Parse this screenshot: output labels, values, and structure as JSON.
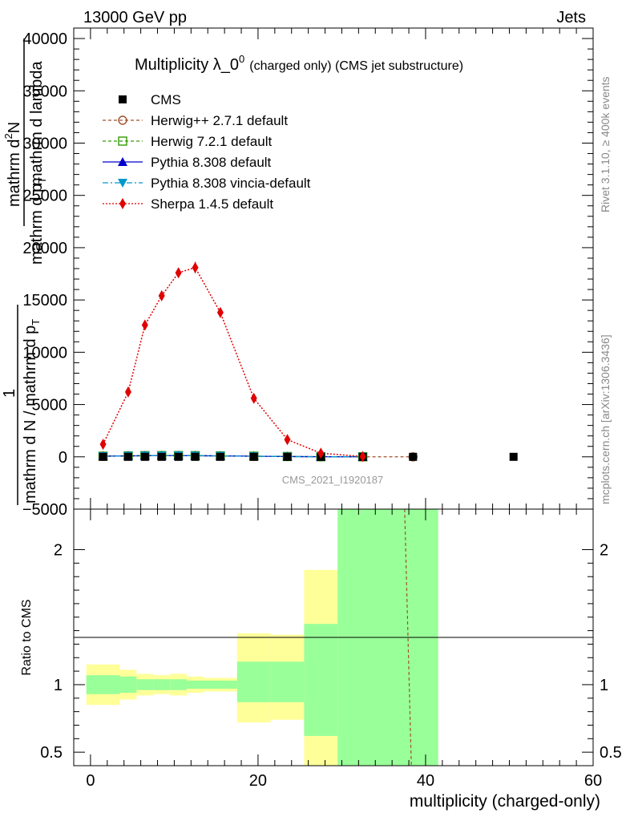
{
  "header": {
    "left": "13000 GeV pp",
    "right": "Jets"
  },
  "side_labels": {
    "rivet": "Rivet 3.1.10, ≥ 400k events",
    "mcplots": "mcplots.cern.ch [arXiv:1306.3436]"
  },
  "watermark": "CMS_2021_I1920187",
  "colors": {
    "cms": "#000000",
    "herwigpp": "#a0522d",
    "herwig7": "#339900",
    "pythia": "#0000cc",
    "vincia": "#0099cc",
    "sherpa": "#e00000",
    "band_inner": "#99ff99",
    "band_outer": "#ffff99"
  },
  "chart_data": [
    {
      "type": "scatter",
      "panel": "main",
      "title_main": "Multiplicity λ_0",
      "title_sup": "0",
      "title_sub": "(charged only) (CMS jet substructure)",
      "ylabel_top": "mathrm d",
      "ylabel_top_sup": "2",
      "ylabel_top_n": "N",
      "ylabel_frac1": "mathrm d p",
      "ylabel_frac1_sub": "T",
      "ylabel_frac2": "mathrm d lambda",
      "ylabel_one": "1",
      "ylabel_bottom": "mathrm d N / mathrm d p",
      "ylabel_bottom_sub": "T",
      "xlim": [
        -2,
        60
      ],
      "ylim": [
        -5000,
        41000
      ],
      "yticks": [
        -5000,
        0,
        5000,
        10000,
        15000,
        20000,
        25000,
        30000,
        35000,
        40000
      ],
      "ytick_labels": [
        "−5000",
        "0",
        "5000",
        "10000",
        "15000",
        "20000",
        "25000",
        "30000",
        "35000",
        "40000"
      ],
      "legend": [
        "CMS",
        "Herwig++ 2.7.1 default",
        "Herwig 7.2.1 default",
        "Pythia 8.308 default",
        "Pythia 8.308 vincia-default",
        "Sherpa 1.4.5 default"
      ],
      "series": [
        {
          "name": "CMS",
          "x": [
            1.5,
            4.5,
            6.5,
            8.5,
            10.5,
            12.5,
            15.5,
            19.5,
            23.5,
            27.5,
            32.5,
            38.5,
            50.5
          ],
          "y": [
            0,
            0,
            0,
            0,
            0,
            0,
            0,
            0,
            0,
            0,
            0,
            0,
            0
          ]
        },
        {
          "name": "Herwig++ 2.7.1 default",
          "x": [
            1.5,
            4.5,
            6.5,
            8.5,
            10.5,
            12.5,
            15.5,
            19.5,
            23.5,
            27.5,
            32.5,
            38.5
          ],
          "y": [
            60,
            90,
            110,
            120,
            120,
            110,
            90,
            60,
            30,
            10,
            2,
            0
          ]
        },
        {
          "name": "Herwig 7.2.1 default",
          "x": [
            1.5,
            4.5,
            6.5,
            8.5,
            10.5,
            12.5,
            15.5,
            19.5,
            23.5,
            27.5,
            32.5
          ],
          "y": [
            60,
            90,
            110,
            120,
            120,
            110,
            90,
            60,
            30,
            10,
            2
          ]
        },
        {
          "name": "Pythia 8.308 default",
          "x": [
            1.5,
            4.5,
            6.5,
            8.5,
            10.5,
            12.5,
            15.5,
            19.5,
            23.5,
            27.5,
            32.5
          ],
          "y": [
            60,
            90,
            110,
            120,
            120,
            110,
            90,
            60,
            30,
            10,
            2
          ]
        },
        {
          "name": "Pythia 8.308 vincia-default",
          "x": [
            1.5,
            4.5,
            6.5,
            8.5,
            10.5,
            12.5,
            15.5,
            19.5,
            23.5,
            27.5,
            32.5
          ],
          "y": [
            60,
            90,
            110,
            120,
            120,
            110,
            90,
            60,
            30,
            10,
            2
          ]
        },
        {
          "name": "Sherpa 1.4.5 default",
          "x": [
            1.5,
            4.5,
            6.5,
            8.5,
            10.5,
            12.5,
            15.5,
            19.5,
            23.5,
            27.5,
            32.5
          ],
          "y": [
            1200,
            6200,
            12600,
            15400,
            17600,
            18100,
            13800,
            5600,
            1650,
            350,
            30
          ],
          "yerr": [
            250,
            300,
            400,
            450,
            450,
            550,
            400,
            250,
            150,
            80,
            20
          ]
        }
      ]
    },
    {
      "type": "area",
      "panel": "ratio",
      "ylabel": "Ratio to CMS",
      "xlabel": "multiplicity (charged-only)",
      "xlim": [
        -2,
        60
      ],
      "ylim": [
        0.4,
        2.3
      ],
      "yticks": [
        0.5,
        1,
        2
      ],
      "ytick_labels": [
        "0.5",
        "1",
        "2"
      ],
      "xticks": [
        0,
        20,
        40,
        60
      ],
      "xtick_labels": [
        "0",
        "20",
        "40",
        "60"
      ],
      "bands": [
        {
          "x0": -0.5,
          "x1": 3.5,
          "inner_lo": 0.93,
          "inner_hi": 1.07,
          "outer_lo": 0.85,
          "outer_hi": 1.15
        },
        {
          "x0": 3.5,
          "x1": 5.5,
          "inner_lo": 0.94,
          "inner_hi": 1.06,
          "outer_lo": 0.89,
          "outer_hi": 1.11
        },
        {
          "x0": 5.5,
          "x1": 7.5,
          "inner_lo": 0.96,
          "inner_hi": 1.04,
          "outer_lo": 0.92,
          "outer_hi": 1.08
        },
        {
          "x0": 7.5,
          "x1": 9.5,
          "inner_lo": 0.96,
          "inner_hi": 1.04,
          "outer_lo": 0.93,
          "outer_hi": 1.07
        },
        {
          "x0": 9.5,
          "x1": 11.5,
          "inner_lo": 0.96,
          "inner_hi": 1.04,
          "outer_lo": 0.92,
          "outer_hi": 1.08
        },
        {
          "x0": 11.5,
          "x1": 13.5,
          "inner_lo": 0.97,
          "inner_hi": 1.03,
          "outer_lo": 0.94,
          "outer_hi": 1.06
        },
        {
          "x0": 13.5,
          "x1": 17.5,
          "inner_lo": 0.97,
          "inner_hi": 1.03,
          "outer_lo": 0.95,
          "outer_hi": 1.05
        },
        {
          "x0": 17.5,
          "x1": 21.5,
          "inner_lo": 0.87,
          "inner_hi": 1.17,
          "outer_lo": 0.72,
          "outer_hi": 1.38
        },
        {
          "x0": 21.5,
          "x1": 25.5,
          "inner_lo": 0.87,
          "inner_hi": 1.17,
          "outer_lo": 0.74,
          "outer_hi": 1.37
        },
        {
          "x0": 25.5,
          "x1": 29.5,
          "inner_lo": 0.62,
          "inner_hi": 1.45,
          "outer_lo": 0.3,
          "outer_hi": 1.85
        },
        {
          "x0": 29.5,
          "x1": 41.5,
          "inner_lo": 0.3,
          "inner_hi": 2.6,
          "outer_lo": 0.3,
          "outer_hi": 2.6
        }
      ],
      "series": [
        {
          "name": "Herwig++ 2.7.1 default",
          "x": [
            37.5,
            38.3
          ],
          "y": [
            2.3,
            0.4
          ]
        }
      ]
    }
  ]
}
